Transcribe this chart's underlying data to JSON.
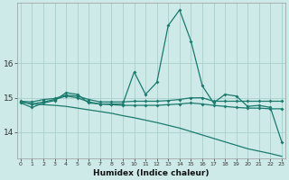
{
  "x": [
    0,
    1,
    2,
    3,
    4,
    5,
    6,
    7,
    8,
    9,
    10,
    11,
    12,
    13,
    14,
    15,
    16,
    17,
    18,
    19,
    20,
    21,
    22,
    23
  ],
  "line_spiky": [
    14.85,
    14.72,
    14.85,
    14.92,
    15.15,
    15.1,
    14.85,
    14.82,
    14.82,
    14.82,
    15.75,
    15.1,
    15.45,
    17.1,
    17.55,
    16.65,
    15.35,
    14.85,
    15.1,
    15.05,
    14.75,
    14.78,
    14.72,
    13.72
  ],
  "line_flat": [
    14.9,
    14.88,
    14.95,
    14.98,
    15.08,
    15.05,
    14.95,
    14.88,
    14.88,
    14.88,
    14.9,
    14.9,
    14.9,
    14.92,
    14.95,
    15.0,
    15.0,
    14.9,
    14.9,
    14.9,
    14.9,
    14.9,
    14.9,
    14.9
  ],
  "line_medium": [
    14.88,
    14.82,
    14.88,
    14.95,
    15.05,
    15.0,
    14.88,
    14.82,
    14.8,
    14.78,
    14.78,
    14.78,
    14.78,
    14.8,
    14.82,
    14.85,
    14.82,
    14.78,
    14.75,
    14.72,
    14.7,
    14.7,
    14.68,
    14.68
  ],
  "line_declining": [
    14.88,
    14.82,
    14.8,
    14.78,
    14.75,
    14.7,
    14.65,
    14.6,
    14.55,
    14.48,
    14.42,
    14.35,
    14.28,
    14.2,
    14.12,
    14.02,
    13.92,
    13.82,
    13.72,
    13.62,
    13.52,
    13.45,
    13.38,
    13.3
  ],
  "bg_color": "#ceeae8",
  "line_color": "#1a7a6e",
  "grid_color": "#aacfcc",
  "xlabel": "Humidex (Indice chaleur)",
  "yticks": [
    14,
    15,
    16
  ],
  "xticks": [
    0,
    1,
    2,
    3,
    4,
    5,
    6,
    7,
    8,
    9,
    10,
    11,
    12,
    13,
    14,
    15,
    16,
    17,
    18,
    19,
    20,
    21,
    22,
    23
  ],
  "ylim": [
    13.25,
    17.75
  ],
  "xlim": [
    -0.3,
    23.3
  ]
}
